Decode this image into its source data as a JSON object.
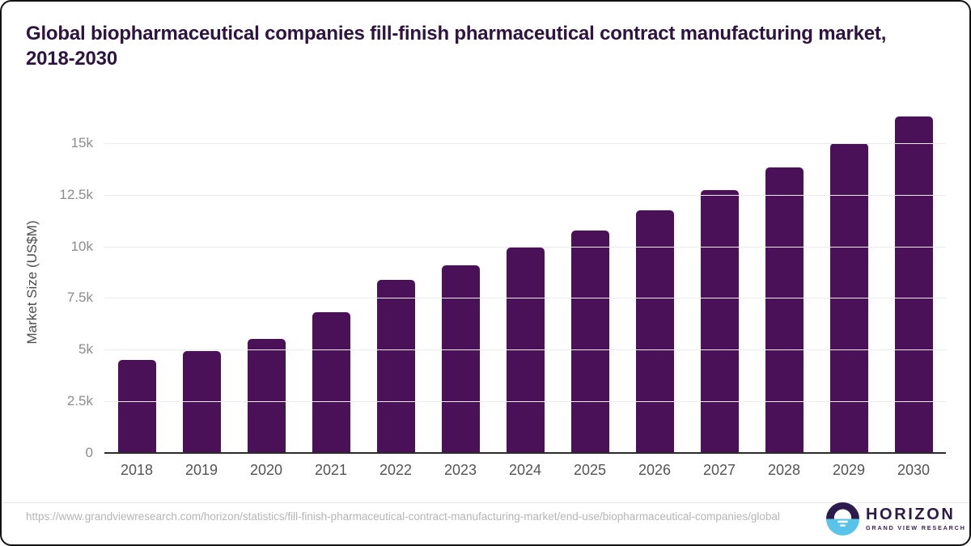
{
  "title": "Global biopharmaceutical companies fill-finish pharmaceutical contract manufacturing market, 2018-2030",
  "chart_data": {
    "type": "bar",
    "categories": [
      "2018",
      "2019",
      "2020",
      "2021",
      "2022",
      "2023",
      "2024",
      "2025",
      "2026",
      "2027",
      "2028",
      "2029",
      "2030"
    ],
    "values": [
      4520,
      4930,
      5520,
      6800,
      8370,
      9100,
      9930,
      10780,
      11730,
      12740,
      13830,
      14980,
      16280
    ],
    "title": "Global biopharmaceutical companies fill-finish pharmaceutical contract manufacturing market, 2018-2030",
    "xlabel": "",
    "ylabel": "Market Size (US$M)",
    "ylim": [
      0,
      16600
    ],
    "yticks": [
      {
        "label": "0",
        "value": 0
      },
      {
        "label": "2.5k",
        "value": 2500
      },
      {
        "label": "5k",
        "value": 5000
      },
      {
        "label": "7.5k",
        "value": 7500
      },
      {
        "label": "10k",
        "value": 10000
      },
      {
        "label": "12.5k",
        "value": 12500
      },
      {
        "label": "15k",
        "value": 15000
      }
    ],
    "grid": true,
    "legend": "none",
    "bar_color": "#4A1158"
  },
  "colors": {
    "title_text": "#2E1240",
    "bar": "#4A1158",
    "gridline": "#ebebeb",
    "axis_line": "#2b2b2b",
    "x_tick_text": "#545454",
    "y_tick_text": "#8c8c8c",
    "url_text": "#b5b5b5",
    "logo_purple": "#2B1B4D",
    "logo_blue": "#59C3EA"
  },
  "footer": {
    "source_url": "https://www.grandviewresearch.com/horizon/statistics/fill-finish-pharmaceutical-contract-manufacturing-market/end-use/biopharmaceutical-companies/global",
    "logo_name": "HORIZON",
    "logo_subtitle": "GRAND VIEW RESEARCH"
  }
}
